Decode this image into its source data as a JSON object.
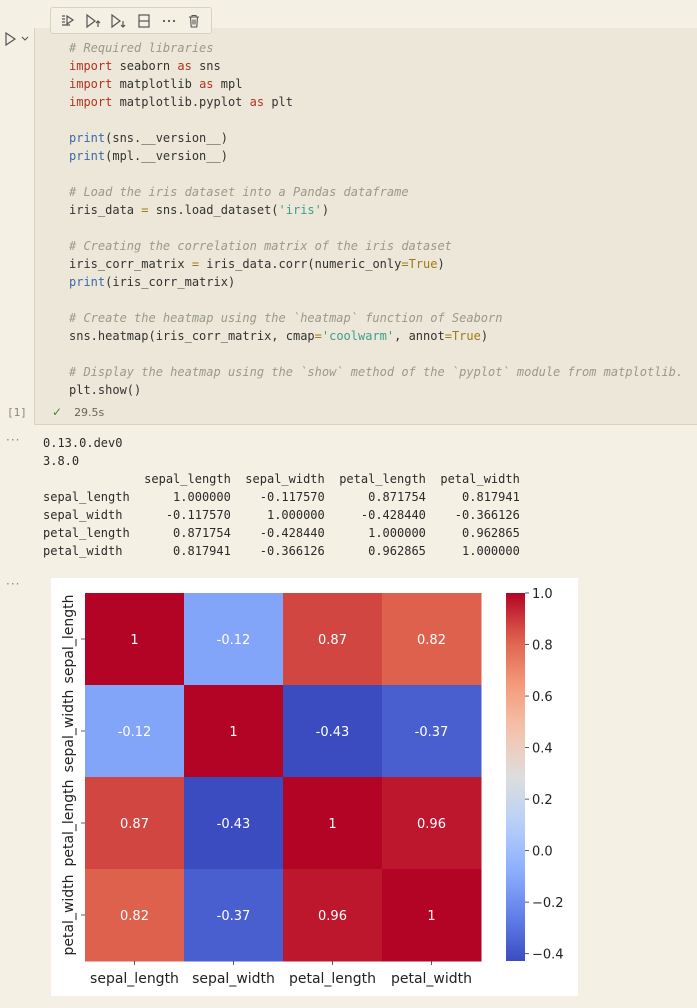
{
  "toolbar": {
    "icons": [
      "execute-above-icon",
      "execute-cell-and-above-icon",
      "execute-cell-and-below-icon",
      "split-cell-icon",
      "more-actions-icon",
      "delete-icon"
    ]
  },
  "cell": {
    "execution_count": "[1]",
    "status_duration": "29.5s",
    "code_lines": [
      [
        {
          "t": "# Required libraries",
          "c": "cm"
        }
      ],
      [
        {
          "t": "import",
          "c": "kw"
        },
        {
          "t": " seaborn "
        },
        {
          "t": "as",
          "c": "kw"
        },
        {
          "t": " sns"
        }
      ],
      [
        {
          "t": "import",
          "c": "kw"
        },
        {
          "t": " matplotlib "
        },
        {
          "t": "as",
          "c": "kw"
        },
        {
          "t": " mpl"
        }
      ],
      [
        {
          "t": "import",
          "c": "kw"
        },
        {
          "t": " matplotlib.pyplot "
        },
        {
          "t": "as",
          "c": "kw"
        },
        {
          "t": " plt"
        }
      ],
      [],
      [
        {
          "t": "print",
          "c": "bi"
        },
        {
          "t": "(sns.__version__)"
        }
      ],
      [
        {
          "t": "print",
          "c": "bi"
        },
        {
          "t": "(mpl.__version__)"
        }
      ],
      [],
      [
        {
          "t": "# Load the iris dataset into a Pandas dataframe",
          "c": "cm"
        }
      ],
      [
        {
          "t": "iris_data "
        },
        {
          "t": "=",
          "c": "op"
        },
        {
          "t": " sns.load_dataset("
        },
        {
          "t": "'iris'",
          "c": "st"
        },
        {
          "t": ")"
        }
      ],
      [],
      [
        {
          "t": "# Creating the correlation matrix of the iris dataset",
          "c": "cm"
        }
      ],
      [
        {
          "t": "iris_corr_matrix "
        },
        {
          "t": "=",
          "c": "op"
        },
        {
          "t": " iris_data.corr(numeric_only"
        },
        {
          "t": "=",
          "c": "op"
        },
        {
          "t": "True",
          "c": "op"
        },
        {
          "t": ")"
        }
      ],
      [
        {
          "t": "print",
          "c": "bi"
        },
        {
          "t": "(iris_corr_matrix)"
        }
      ],
      [],
      [
        {
          "t": "# Create the heatmap using the `heatmap` function of Seaborn",
          "c": "cm"
        }
      ],
      [
        {
          "t": "sns.heatmap(iris_corr_matrix, cmap"
        },
        {
          "t": "=",
          "c": "op"
        },
        {
          "t": "'coolwarm'",
          "c": "st"
        },
        {
          "t": ", annot"
        },
        {
          "t": "=",
          "c": "op"
        },
        {
          "t": "True",
          "c": "op"
        },
        {
          "t": ")"
        }
      ],
      [],
      [
        {
          "t": "# Display the heatmap using the `show` method of the `pyplot` module from matplotlib.",
          "c": "cm"
        }
      ],
      [
        {
          "t": "plt.show()"
        }
      ]
    ]
  },
  "output": {
    "text_lines": [
      "0.13.0.dev0",
      "3.8.0",
      "              sepal_length  sepal_width  petal_length  petal_width",
      "sepal_length      1.000000    -0.117570      0.871754     0.817941",
      "sepal_width      -0.117570     1.000000     -0.428440    -0.366126",
      "petal_length      0.871754    -0.428440      1.000000     0.962865",
      "petal_width       0.817941    -0.366126      0.962865     1.000000"
    ]
  },
  "chart_data": {
    "type": "heatmap",
    "rows": [
      "sepal_length",
      "sepal_width",
      "petal_length",
      "petal_width"
    ],
    "columns": [
      "sepal_length",
      "sepal_width",
      "petal_length",
      "petal_width"
    ],
    "values": [
      [
        1.0,
        -0.11757,
        0.871754,
        0.817941
      ],
      [
        -0.11757,
        1.0,
        -0.42844,
        -0.366126
      ],
      [
        0.871754,
        -0.42844,
        1.0,
        0.962865
      ],
      [
        0.817941,
        -0.366126,
        0.962865,
        1.0
      ]
    ],
    "annotations": [
      [
        "1",
        "-0.12",
        "0.87",
        "0.82"
      ],
      [
        "-0.12",
        "1",
        "-0.43",
        "-0.37"
      ],
      [
        "0.87",
        "-0.43",
        "1",
        "0.96"
      ],
      [
        "0.82",
        "-0.37",
        "0.96",
        "1"
      ]
    ],
    "cmap": "coolwarm",
    "colorbar_range": [
      -0.42844,
      1.0
    ],
    "colorbar_ticks": [
      1.0,
      0.8,
      0.6,
      0.4,
      0.2,
      0.0,
      -0.2,
      -0.4
    ],
    "colorbar_tick_labels": [
      "1.0",
      "0.8",
      "0.6",
      "0.4",
      "0.2",
      "0.0",
      "−0.2",
      "−0.4"
    ]
  }
}
